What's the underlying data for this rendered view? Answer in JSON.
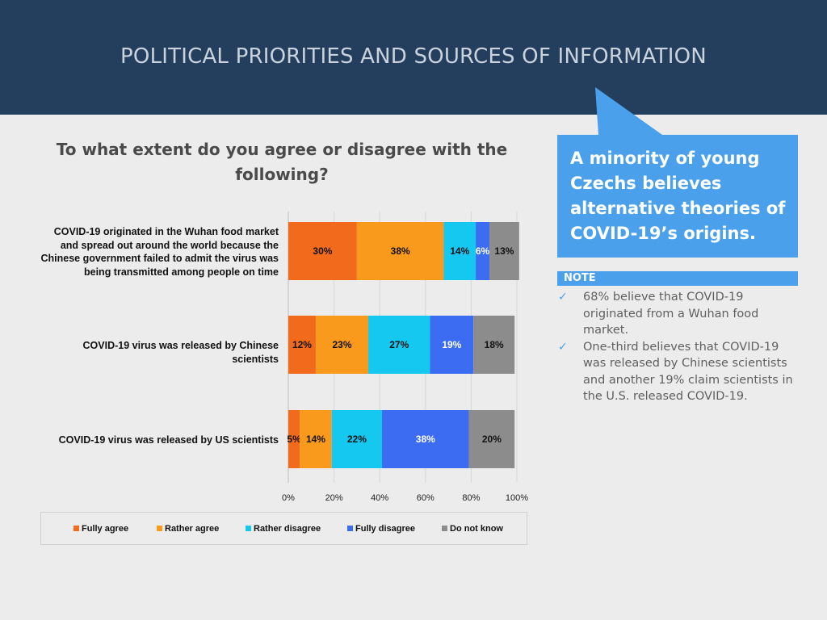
{
  "header": {
    "title": "POLITICAL PRIORITIES AND SOURCES OF INFORMATION"
  },
  "question": "To what extent do you agree or disagree with the following?",
  "callout": {
    "text": "A minority of young Czechs believes alternative theories of COVID-19’s origins."
  },
  "note": {
    "title": "NOTE",
    "items": [
      "68% believe that COVID-19 originated from a Wuhan food market.",
      "One-third believes that COVID-19 was released by Chinese scientists and another 19% claim scientists in the U.S. released COVID-19."
    ]
  },
  "colors": {
    "header_bg": "#243f5e",
    "accent": "#4aa0ea",
    "fully_agree": "#f26b1d",
    "rather_agree": "#f99a1c",
    "rather_disagree": "#14c8f0",
    "fully_disagree": "#3b6cf2",
    "do_not_know": "#8c8c8c"
  },
  "chart_data": {
    "type": "bar",
    "orientation": "horizontal",
    "stacked": true,
    "title": "To what extent do you agree or disagree with the following?",
    "categories": [
      "COVID-19 originated in the Wuhan food market and spread out around the world because the Chinese government failed to admit the virus was being transmitted among people on time",
      "COVID-19 virus was released by Chinese scientists",
      "COVID-19 virus was released by US scientists"
    ],
    "series": [
      {
        "name": "Fully agree",
        "color": "#f26b1d",
        "values": [
          30,
          12,
          5
        ]
      },
      {
        "name": "Rather agree",
        "color": "#f99a1c",
        "values": [
          38,
          23,
          14
        ]
      },
      {
        "name": "Rather disagree",
        "color": "#14c8f0",
        "values": [
          14,
          27,
          22
        ]
      },
      {
        "name": "Fully disagree",
        "color": "#3b6cf2",
        "values": [
          6,
          19,
          38
        ]
      },
      {
        "name": "Do not know",
        "color": "#8c8c8c",
        "values": [
          13,
          18,
          20
        ]
      }
    ],
    "xlim": [
      0,
      100
    ],
    "xticks": [
      "0%",
      "20%",
      "40%",
      "60%",
      "80%",
      "100%"
    ],
    "legend": "bottom",
    "grid": true
  }
}
